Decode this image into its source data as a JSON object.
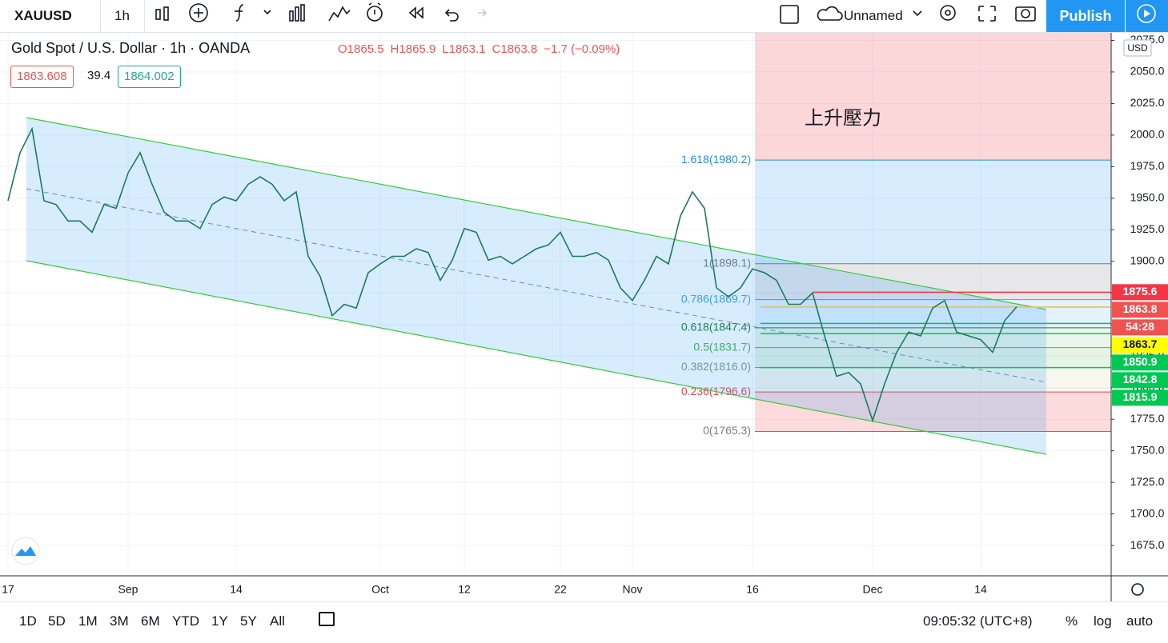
{
  "toolbar": {
    "symbol": "XAUUSD",
    "interval": "1h",
    "layout_name": "Unnamed",
    "publish": "Publish"
  },
  "legend": {
    "title": "Gold Spot / U.S. Dollar · 1h · OANDA",
    "ohlc": [
      "O1865.5",
      "H1865.9",
      "L1863.1",
      "C1863.8",
      "−1.7 (−0.09%)"
    ],
    "bid": "1863.608",
    "spread": "39.4",
    "ask": "1864.002"
  },
  "annotation": "上升壓力",
  "chart_data": {
    "type": "line",
    "color": "#1f7a5c",
    "currency": "USD",
    "categories": [
      "17",
      null,
      null,
      null,
      null,
      null,
      null,
      null,
      null,
      null,
      "Sep",
      null,
      null,
      null,
      null,
      null,
      null,
      null,
      null,
      "14",
      null,
      null,
      null,
      null,
      null,
      null,
      null,
      null,
      null,
      null,
      null,
      "Oct",
      null,
      null,
      null,
      null,
      null,
      null,
      "12",
      null,
      null,
      null,
      null,
      null,
      null,
      null,
      "22",
      null,
      null,
      null,
      null,
      null,
      "Nov",
      null,
      null,
      null,
      null,
      null,
      null,
      null,
      null,
      null,
      "16",
      null,
      null,
      null,
      null,
      null,
      null,
      null,
      null,
      null,
      "Dec",
      null,
      null,
      null,
      null,
      null,
      null,
      null,
      null,
      "14",
      null,
      null,
      null
    ],
    "values": [
      1948,
      1986,
      2005,
      1948,
      1945,
      1932,
      1932,
      1923,
      1945,
      1942,
      1970,
      1986,
      1961,
      1939,
      1932,
      1932,
      1926,
      1945,
      1951,
      1948,
      1961,
      1967,
      1961,
      1948,
      1955,
      1904,
      1888,
      1857,
      1866,
      1863,
      1891,
      1898,
      1904,
      1904,
      1910,
      1907,
      1885,
      1901,
      1926,
      1923,
      1901,
      1904,
      1898,
      1904,
      1910,
      1913,
      1923,
      1904,
      1904,
      1907,
      1901,
      1879,
      1869,
      1885,
      1904,
      1898,
      1936,
      1955,
      1942,
      1879,
      1872,
      1879,
      1894,
      1891,
      1885,
      1866,
      1866,
      1875,
      1841,
      1809,
      1812,
      1803,
      1774,
      1803,
      1828,
      1844,
      1841,
      1863,
      1869,
      1844,
      1841,
      1838,
      1828,
      1853,
      1864
    ],
    "ylim": [
      1651,
      2081
    ],
    "yticks": [
      {
        "value": 1675,
        "label": "1675.0"
      },
      {
        "value": 1700,
        "label": "1700.0"
      },
      {
        "value": 1725,
        "label": "1725.0"
      },
      {
        "value": 1750,
        "label": "1750.0"
      },
      {
        "value": 1775,
        "label": "1775.0"
      },
      {
        "value": 1800,
        "label": "1800.0"
      },
      {
        "value": 1825,
        "label": "1825.0"
      },
      {
        "value": 1850,
        "label": "1850.0"
      },
      {
        "value": 1875,
        "label": "1875.0"
      },
      {
        "value": 1900,
        "label": "1900.0"
      },
      {
        "value": 1925,
        "label": "1925.0"
      },
      {
        "value": 1950,
        "label": "1950.0"
      },
      {
        "value": 1975,
        "label": "1975.0"
      },
      {
        "value": 2000,
        "label": "2000.0"
      },
      {
        "value": 2025,
        "label": "2025.0"
      },
      {
        "value": 2050,
        "label": "2050.0"
      },
      {
        "value": 2075,
        "label": "2075.0"
      }
    ],
    "grid": true,
    "fib_levels": [
      {
        "label": "1.618(1980.2)",
        "value": 1980.2,
        "color": "#2a8bd6"
      },
      {
        "label": "1(1898.1)",
        "value": 1898.1,
        "color": "#787b86"
      },
      {
        "label": "0.786(1869.7)",
        "value": 1869.7,
        "color": "#4a9fd8"
      },
      {
        "label": "0.618(1847.4)",
        "value": 1847.4,
        "color": "#1e7e34"
      },
      {
        "label": "0.5(1831.7)",
        "value": 1831.7,
        "color": "#4caf50"
      },
      {
        "label": "0.382(1816.0)",
        "value": 1816.0,
        "color": "#7f9c7f"
      },
      {
        "label": "0.236(1796.6)",
        "value": 1796.6,
        "color": "#e5484d"
      },
      {
        "label": "0(1765.3)",
        "value": 1765.3,
        "color": "#787b86"
      }
    ],
    "price_lines": [
      {
        "label": "1875.6",
        "value": 1875.6,
        "color": "#f23645"
      },
      {
        "label": "1863.8",
        "value": 1863.8,
        "color": "#ef5350",
        "countdown": "54:28"
      },
      {
        "label": "1863.7",
        "value": 1863.7,
        "color": "#ffff00"
      },
      {
        "label": "1850.9",
        "value": 1850.9,
        "color": "#00c853"
      },
      {
        "label": "1842.8",
        "value": 1842.8,
        "color": "#00c853"
      },
      {
        "label": "1815.9",
        "value": 1815.9,
        "color": "#00c853"
      }
    ]
  },
  "bottom_bar": {
    "ranges": [
      "1D",
      "5D",
      "1M",
      "3M",
      "6M",
      "YTD",
      "1Y",
      "5Y",
      "All"
    ],
    "clock": "09:05:32 (UTC+8)",
    "options": [
      "%",
      "log",
      "auto"
    ]
  }
}
